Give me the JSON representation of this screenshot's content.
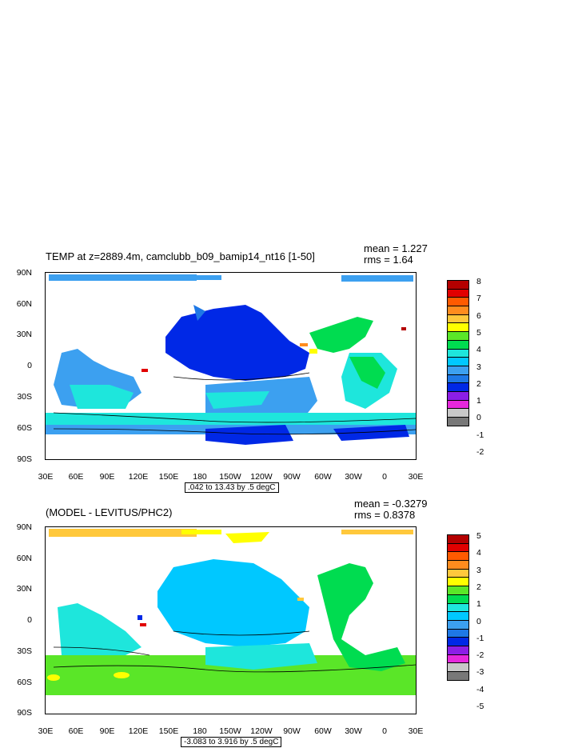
{
  "panel1": {
    "title": "TEMP at z=2889.4m, camclubb_b09_bamip14_nt16 [1-50]",
    "mean": "mean = 1.227",
    "rms": "rms = 1.64",
    "range_label": ".042 to 13.43 by .5 degC",
    "lat_labels": [
      "90N",
      "60N",
      "30N",
      "0",
      "30S",
      "60S",
      "90S"
    ],
    "lon_labels": [
      "30E",
      "60E",
      "90E",
      "120E",
      "150E",
      "180",
      "150W",
      "120W",
      "90W",
      "60W",
      "30W",
      "0",
      "30E"
    ],
    "colorbar_labels": [
      "8",
      "7",
      "6",
      "5",
      "4",
      "3",
      "2",
      "1",
      "0",
      "-1",
      "-2"
    ],
    "colorbar_colors": [
      "#b40000",
      "#e10000",
      "#ff5a00",
      "#ff8c1e",
      "#ffc83c",
      "#ffff00",
      "#5ae628",
      "#00dc50",
      "#1ee6dc",
      "#00c8ff",
      "#3ca0f0",
      "#1e78e6",
      "#0028e6",
      "#8c1ee6",
      "#e628dc",
      "#c8c8c8",
      "#787878"
    ]
  },
  "panel2": {
    "title": "(MODEL - LEVITUS/PHC2)",
    "mean": "mean = -0.3279",
    "rms": "rms = 0.8378",
    "range_label": "-3.083 to 3.916 by .5 degC",
    "lat_labels": [
      "90N",
      "60N",
      "30N",
      "0",
      "30S",
      "60S",
      "90S"
    ],
    "lon_labels": [
      "30E",
      "60E",
      "90E",
      "120E",
      "150E",
      "180",
      "150W",
      "120W",
      "90W",
      "60W",
      "30W",
      "0",
      "30E"
    ],
    "colorbar_labels": [
      "5",
      "4",
      "3",
      "2",
      "1",
      "0",
      "-1",
      "-2",
      "-3",
      "-4",
      "-5"
    ],
    "colorbar_colors": [
      "#b40000",
      "#e10000",
      "#ff5a00",
      "#ff8c1e",
      "#ffc83c",
      "#ffff00",
      "#5ae628",
      "#00dc50",
      "#1ee6dc",
      "#00c8ff",
      "#3ca0f0",
      "#1e78e6",
      "#0028e6",
      "#8c1ee6",
      "#e628dc",
      "#c8c8c8",
      "#787878"
    ]
  }
}
